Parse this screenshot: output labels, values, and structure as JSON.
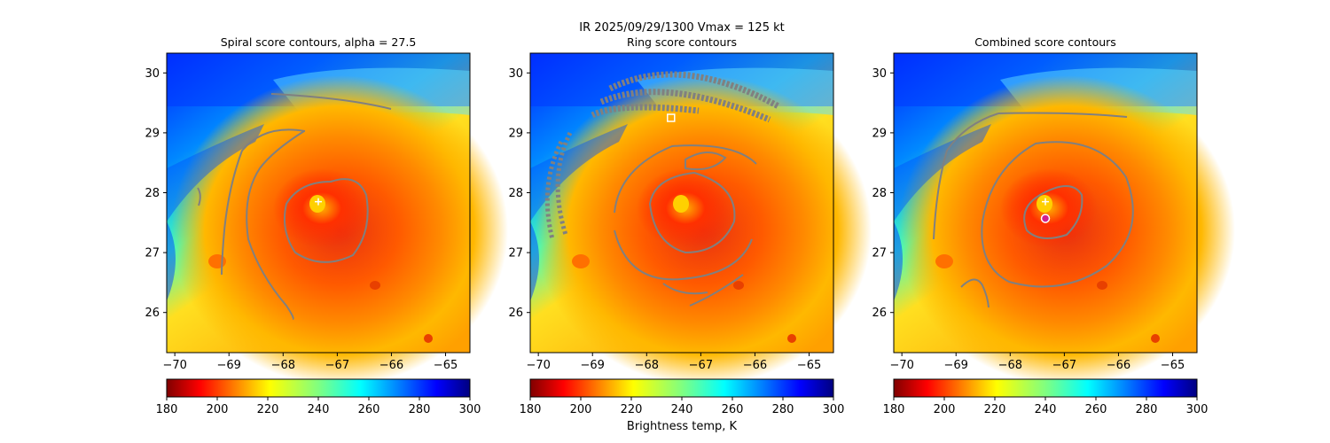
{
  "suptitle": "IR  2025/09/29/1300    Vmax = 125 kt",
  "colormap": "jet",
  "colorbar_label": "Brightness temp, K",
  "colors": {
    "contour": "#808080",
    "marker_white": "#ffffff",
    "marker_magenta": "#d0208f"
  },
  "chart_data": [
    {
      "type": "heatmap",
      "title": "Spiral score contours, alpha = 27.5",
      "x_ticks": [
        -70,
        -69,
        -68,
        -67,
        -66,
        -65
      ],
      "y_ticks": [
        26,
        27,
        28,
        29,
        30
      ],
      "xlim": [
        -70.15,
        -64.55
      ],
      "ylim": [
        25.33,
        30.33
      ],
      "colorbar": {
        "vmin": 180,
        "vmax": 300,
        "ticks": [
          180,
          200,
          220,
          240,
          260,
          280,
          300
        ]
      },
      "center": {
        "x": -67.35,
        "y": 27.85,
        "marker": "plus"
      },
      "markers": []
    },
    {
      "type": "heatmap",
      "title": "Ring score contours",
      "x_ticks": [
        -70,
        -69,
        -68,
        -67,
        -66,
        -65
      ],
      "y_ticks": [
        26,
        27,
        28,
        29,
        30
      ],
      "xlim": [
        -70.15,
        -64.55
      ],
      "ylim": [
        25.33,
        30.33
      ],
      "colorbar": {
        "vmin": 180,
        "vmax": 300,
        "ticks": [
          180,
          200,
          220,
          240,
          260,
          280,
          300
        ]
      },
      "center": null,
      "markers": [
        {
          "x": -67.55,
          "y": 29.25,
          "marker": "square"
        }
      ]
    },
    {
      "type": "heatmap",
      "title": "Combined score contours",
      "x_ticks": [
        -70,
        -69,
        -68,
        -67,
        -66,
        -65
      ],
      "y_ticks": [
        26,
        27,
        28,
        29,
        30
      ],
      "xlim": [
        -70.15,
        -64.55
      ],
      "ylim": [
        25.33,
        30.33
      ],
      "colorbar": {
        "vmin": 180,
        "vmax": 300,
        "ticks": [
          180,
          200,
          220,
          240,
          260,
          280,
          300
        ]
      },
      "center": {
        "x": -67.35,
        "y": 27.85,
        "marker": "plus"
      },
      "markers": [
        {
          "x": -67.35,
          "y": 27.57,
          "marker": "circle"
        }
      ]
    }
  ]
}
